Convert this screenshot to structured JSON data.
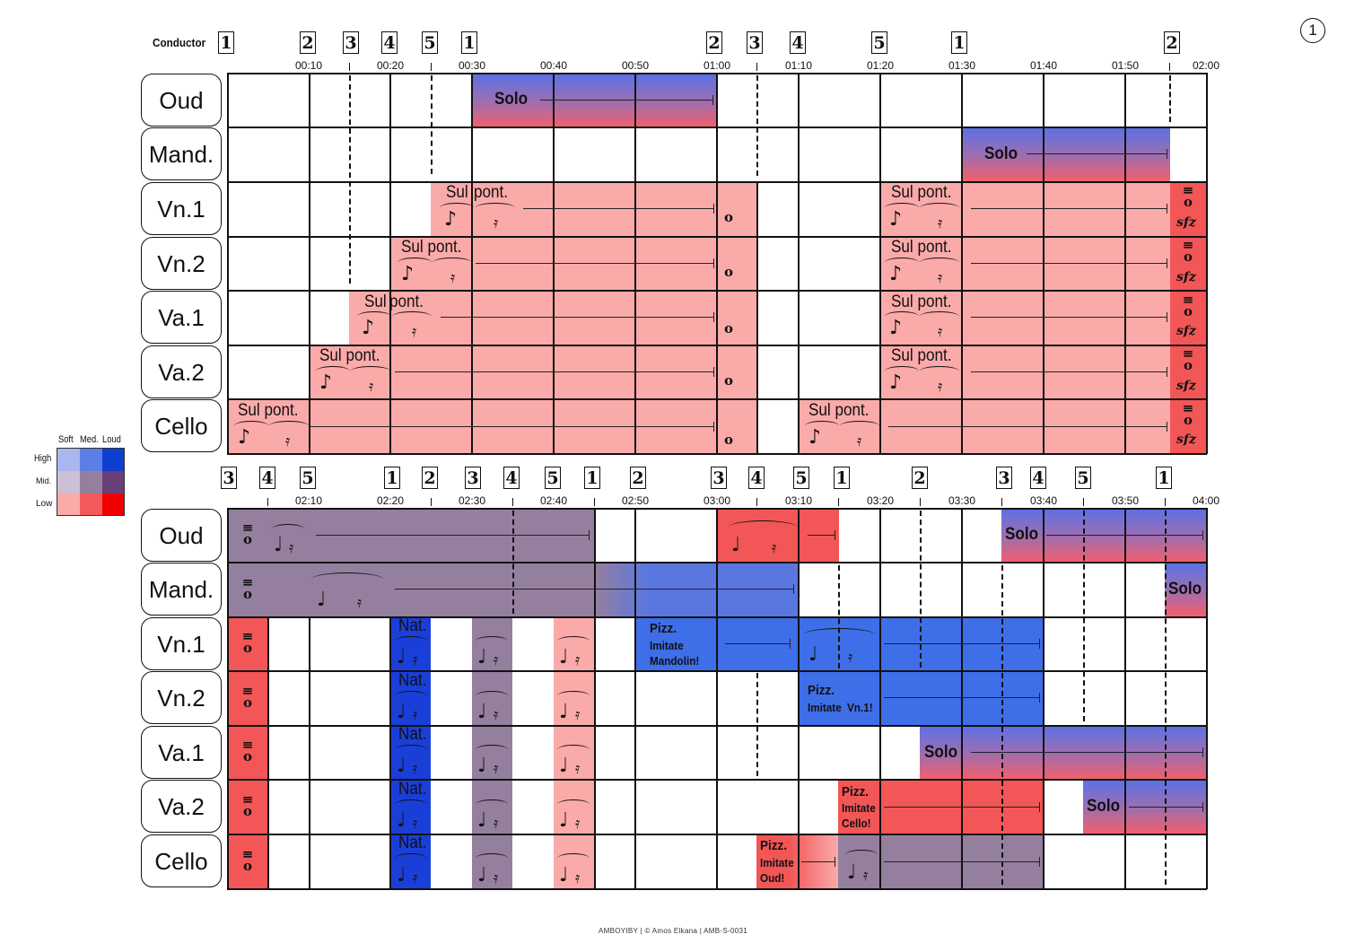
{
  "page_number": "1",
  "conductor_label": "Conductor",
  "instruments": [
    "Oud",
    "Mand.",
    "Vn.1",
    "Vn.2",
    "Va.1",
    "Va.2",
    "Cello"
  ],
  "system1": {
    "beats": [
      "1",
      "2",
      "3",
      "4",
      "5",
      "1",
      "2",
      "3",
      "4",
      "5",
      "1",
      "2"
    ],
    "times": [
      "00:10",
      "00:20",
      "00:30",
      "00:40",
      "00:50",
      "01:00",
      "01:10",
      "01:20",
      "01:30",
      "01:40",
      "01:50",
      "02:00"
    ]
  },
  "system2": {
    "beats": [
      "3",
      "4",
      "5",
      "1",
      "2",
      "3",
      "4",
      "5",
      "1",
      "2",
      "3",
      "4",
      "5",
      "1",
      "2",
      "3",
      "4",
      "5",
      "1"
    ],
    "times": [
      "02:10",
      "02:20",
      "02:30",
      "02:40",
      "02:50",
      "03:00",
      "03:10",
      "03:20",
      "03:30",
      "03:40",
      "03:50",
      "04:00"
    ]
  },
  "text": {
    "solo": "Solo",
    "sul_pont": "Sul pont.",
    "sul": "Sul",
    "pont": "pont.",
    "nat": "Nat.",
    "pizz": "Pizz.",
    "imitate": "Imitate",
    "mandolin": "Mandolin!",
    "vn1": "Vn.1!",
    "cello": "Cello!",
    "oud": "Oud!",
    "sfz": "sfz"
  },
  "legend": {
    "columns": [
      "Soft",
      "Med.",
      "Loud"
    ],
    "rows": [
      "High",
      "Mid.",
      "Low"
    ],
    "colors": [
      [
        "#a9b6ef",
        "#5b7fe4",
        "#0f3fd0"
      ],
      [
        "#cdbfd6",
        "#957f9e",
        "#6a3e79"
      ],
      [
        "#fbaaaa",
        "#f55a5a",
        "#f00000"
      ]
    ]
  },
  "footer": "AMBOYIBY  |  © Amos Elkana  |  AMB-S-0031"
}
